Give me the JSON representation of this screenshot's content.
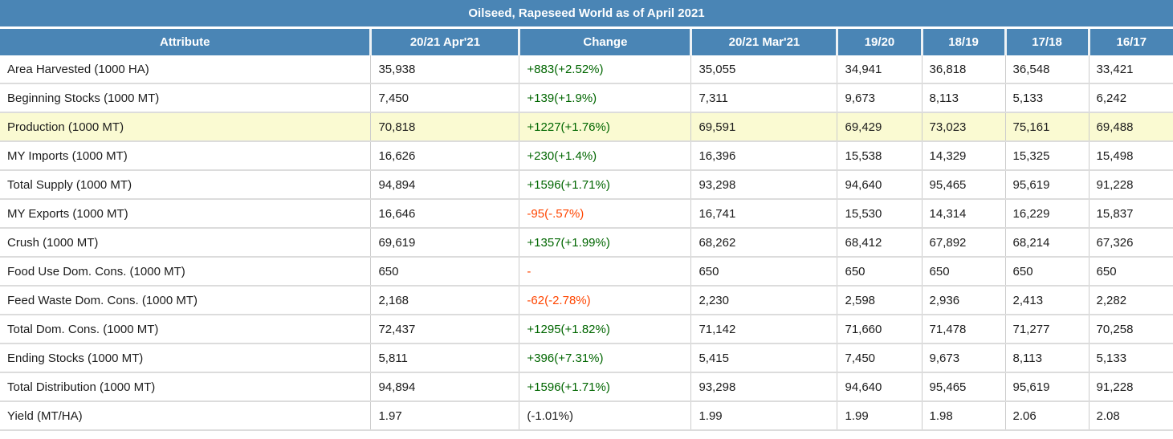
{
  "title": "Oilseed, Rapeseed World as of April 2021",
  "colors": {
    "header_bg": "#4A85B5",
    "header_text": "#FFFFFF",
    "positive_change": "#006600",
    "negative_change": "#FF4500",
    "neutral_change": "#1C1C1C",
    "highlight_row_bg": "#FAFAD2",
    "body_text": "#1C1C1C",
    "grid_line": "#DCDCDC"
  },
  "chart_data": {
    "type": "table",
    "title": "Oilseed, Rapeseed World as of April 2021",
    "columns": [
      "Attribute",
      "20/21 Apr'21",
      "Change",
      "20/21 Mar'21",
      "19/20",
      "18/19",
      "17/18",
      "16/17"
    ],
    "rows": [
      {
        "cells": [
          "Area Harvested (1000 HA)",
          "35,938",
          "+883(+2.52%)",
          "35,055",
          "34,941",
          "36,818",
          "36,548",
          "33,421"
        ],
        "change_color": "positive",
        "highlight": false
      },
      {
        "cells": [
          "Beginning Stocks (1000 MT)",
          "7,450",
          "+139(+1.9%)",
          "7,311",
          "9,673",
          "8,113",
          "5,133",
          "6,242"
        ],
        "change_color": "positive",
        "highlight": false
      },
      {
        "cells": [
          "Production (1000 MT)",
          "70,818",
          "+1227(+1.76%)",
          "69,591",
          "69,429",
          "73,023",
          "75,161",
          "69,488"
        ],
        "change_color": "positive",
        "highlight": true
      },
      {
        "cells": [
          "MY Imports (1000 MT)",
          "16,626",
          "+230(+1.4%)",
          "16,396",
          "15,538",
          "14,329",
          "15,325",
          "15,498"
        ],
        "change_color": "positive",
        "highlight": false
      },
      {
        "cells": [
          "Total Supply (1000 MT)",
          "94,894",
          "+1596(+1.71%)",
          "93,298",
          "94,640",
          "95,465",
          "95,619",
          "91,228"
        ],
        "change_color": "positive",
        "highlight": false
      },
      {
        "cells": [
          "MY Exports (1000 MT)",
          "16,646",
          "-95(-.57%)",
          "16,741",
          "15,530",
          "14,314",
          "16,229",
          "15,837"
        ],
        "change_color": "negative",
        "highlight": false
      },
      {
        "cells": [
          "Crush (1000 MT)",
          "69,619",
          "+1357(+1.99%)",
          "68,262",
          "68,412",
          "67,892",
          "68,214",
          "67,326"
        ],
        "change_color": "positive",
        "highlight": false
      },
      {
        "cells": [
          "Food Use Dom. Cons. (1000 MT)",
          "650",
          "-",
          "650",
          "650",
          "650",
          "650",
          "650"
        ],
        "change_color": "negative",
        "highlight": false
      },
      {
        "cells": [
          "Feed Waste Dom. Cons. (1000 MT)",
          "2,168",
          "-62(-2.78%)",
          "2,230",
          "2,598",
          "2,936",
          "2,413",
          "2,282"
        ],
        "change_color": "negative",
        "highlight": false
      },
      {
        "cells": [
          "Total Dom. Cons. (1000 MT)",
          "72,437",
          "+1295(+1.82%)",
          "71,142",
          "71,660",
          "71,478",
          "71,277",
          "70,258"
        ],
        "change_color": "positive",
        "highlight": false
      },
      {
        "cells": [
          "Ending Stocks (1000 MT)",
          "5,811",
          "+396(+7.31%)",
          "5,415",
          "7,450",
          "9,673",
          "8,113",
          "5,133"
        ],
        "change_color": "positive",
        "highlight": false
      },
      {
        "cells": [
          "Total Distribution (1000 MT)",
          "94,894",
          "+1596(+1.71%)",
          "93,298",
          "94,640",
          "95,465",
          "95,619",
          "91,228"
        ],
        "change_color": "positive",
        "highlight": false
      },
      {
        "cells": [
          "Yield (MT/HA)",
          "1.97",
          "(-1.01%)",
          "1.99",
          "1.99",
          "1.98",
          "2.06",
          "2.08"
        ],
        "change_color": "neutral",
        "highlight": false
      }
    ]
  }
}
